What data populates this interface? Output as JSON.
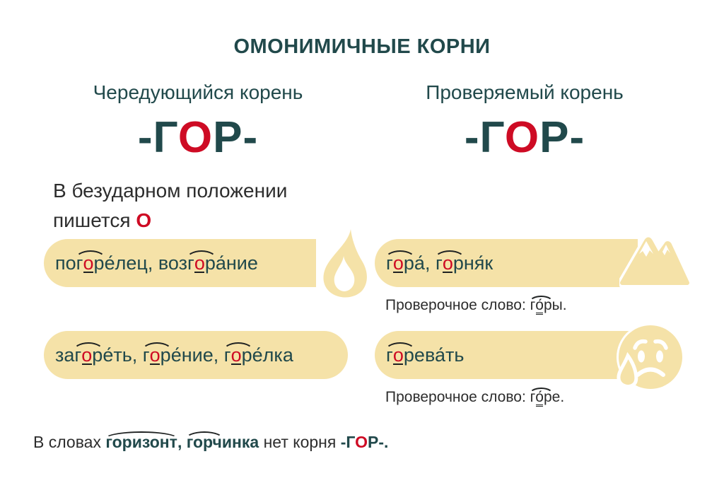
{
  "colors": {
    "teal": "#21494b",
    "red": "#ce0b24",
    "banner_yellow": "#f5e2a8",
    "ink": "#2d2d2d",
    "arc": "#1f2222"
  },
  "title": "ОМОНИМИЧНЫЕ КОРНИ",
  "left_column": {
    "heading": "Чередующийся корень",
    "root": "-Г%О%Р-",
    "note": "В безударном положении пишется %О%",
    "banner1": {
      "text": "по{г*о*р}е́лец, воз{г*о*р}а́ние",
      "icon": "flame-icon"
    },
    "banner2": {
      "text": "за{г*о*р}е́ть, {г*о*р}е́ние, {г*о*р}е́лка"
    }
  },
  "right_column": {
    "heading": "Проверяемый корень",
    "root": "-Г%О%Р-",
    "banner1": {
      "text": "{г*о*р}а́, {г*о*р}ня́к",
      "icon": "mountain-icon",
      "check": "Проверочное слово: {г_о́_р}ы."
    },
    "banner2": {
      "text": "{г*о*р}ева́ть",
      "icon": "sad-face-icon",
      "check": "Проверочное слово: {г_о́_р}е."
    }
  },
  "footer": {
    "text": "В словах #{горизонт},# #{горч}инка# нет корня #-Г%О%Р-.#"
  }
}
